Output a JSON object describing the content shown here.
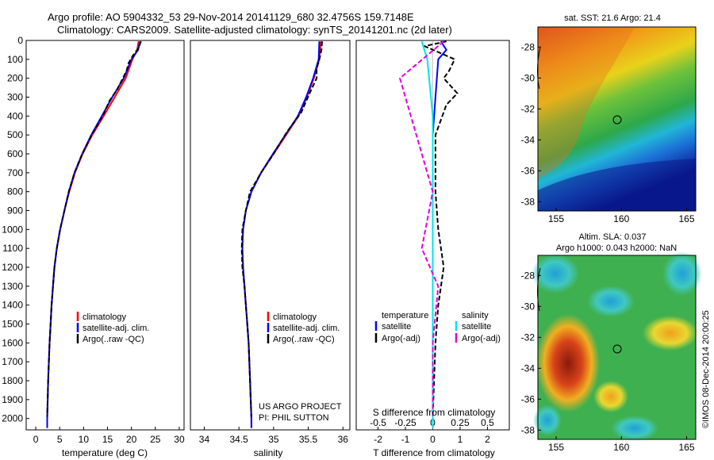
{
  "title_line1": "Argo profile: AO 5904332_53 29-Nov-2014 20141129_680 32.4756S 159.7148E",
  "title_line2": "Climatology: CARS2009. Satellite-adjusted climatology: synTS_20141201.nc (2d later)",
  "colors": {
    "climatology": "#ff0000",
    "satellite": "#0000ff",
    "argo": "#000000",
    "salinity_satellite": "#00e5e5",
    "salinity_argo": "#e000e0"
  },
  "chart_data": [
    {
      "type": "line",
      "xlabel": "temperature (deg C)",
      "ylabel": "",
      "xlim": [
        -2,
        31
      ],
      "ylim": [
        2060,
        0
      ],
      "xticks": [
        "0",
        "5",
        "10",
        "15",
        "20",
        "25",
        "30"
      ],
      "yticks": [
        "0",
        "100",
        "200",
        "300",
        "400",
        "500",
        "600",
        "700",
        "800",
        "900",
        "1000",
        "1100",
        "1200",
        "1300",
        "1400",
        "1500",
        "1600",
        "1700",
        "1800",
        "1900",
        "2000"
      ],
      "legend": [
        "climatology",
        "satellite-adj. clim.",
        "Argo(..raw -QC)"
      ],
      "series": [
        {
          "name": "climatology",
          "points": [
            [
              21.5,
              5
            ],
            [
              21.2,
              50
            ],
            [
              20.2,
              100
            ],
            [
              18.8,
              200
            ],
            [
              16.5,
              300
            ],
            [
              14.2,
              400
            ],
            [
              11.8,
              500
            ],
            [
              9.8,
              600
            ],
            [
              8.2,
              700
            ],
            [
              7.0,
              800
            ],
            [
              6.0,
              900
            ],
            [
              5.1,
              1000
            ],
            [
              4.4,
              1100
            ],
            [
              3.9,
              1200
            ],
            [
              3.6,
              1300
            ],
            [
              3.3,
              1400
            ],
            [
              3.1,
              1500
            ],
            [
              2.9,
              1600
            ],
            [
              2.75,
              1700
            ],
            [
              2.6,
              1800
            ],
            [
              2.5,
              1900
            ],
            [
              2.4,
              2000
            ],
            [
              2.4,
              2050
            ]
          ]
        },
        {
          "name": "satellite-adj. clim.",
          "points": [
            [
              21.8,
              5
            ],
            [
              21.4,
              50
            ],
            [
              20.0,
              100
            ],
            [
              18.4,
              200
            ],
            [
              16.0,
              300
            ],
            [
              13.8,
              400
            ],
            [
              11.6,
              500
            ],
            [
              9.7,
              600
            ],
            [
              8.1,
              700
            ],
            [
              6.9,
              800
            ],
            [
              6.0,
              900
            ],
            [
              5.1,
              1000
            ],
            [
              4.4,
              1100
            ],
            [
              3.9,
              1200
            ],
            [
              3.6,
              1300
            ],
            [
              3.3,
              1400
            ],
            [
              3.1,
              1500
            ],
            [
              2.9,
              1600
            ],
            [
              2.75,
              1700
            ],
            [
              2.6,
              1800
            ],
            [
              2.5,
              1900
            ],
            [
              2.4,
              2000
            ],
            [
              2.4,
              2050
            ]
          ]
        },
        {
          "name": "Argo(..raw -QC)",
          "points": [
            [
              22.0,
              5
            ],
            [
              21.5,
              40
            ],
            [
              20.3,
              80
            ],
            [
              19.4,
              120
            ],
            [
              19.0,
              160
            ],
            [
              18.2,
              200
            ],
            [
              17.0,
              260
            ],
            [
              15.4,
              320
            ],
            [
              14.0,
              400
            ],
            [
              11.7,
              500
            ],
            [
              9.7,
              600
            ],
            [
              8.1,
              700
            ],
            [
              6.9,
              800
            ],
            [
              6.0,
              900
            ],
            [
              5.1,
              1000
            ],
            [
              4.4,
              1100
            ],
            [
              3.9,
              1200
            ],
            [
              3.6,
              1300
            ],
            [
              3.3,
              1400
            ],
            [
              3.1,
              1500
            ],
            [
              2.9,
              1600
            ],
            [
              2.75,
              1700
            ],
            [
              2.6,
              1800
            ],
            [
              2.5,
              1900
            ],
            [
              2.4,
              1990
            ]
          ]
        }
      ]
    },
    {
      "type": "line",
      "xlabel": "salinity",
      "ylabel": "",
      "xlim": [
        33.8,
        36.1
      ],
      "ylim": [
        2060,
        0
      ],
      "xticks": [
        "34",
        "34.5",
        "35",
        "35.5",
        "36"
      ],
      "legend": [
        "climatology",
        "satellite-adj. clim.",
        "Argo(..raw -QC)"
      ],
      "annotation": [
        "US ARGO PROJECT",
        "PI: PHIL SUTTON"
      ],
      "series": [
        {
          "name": "climatology",
          "points": [
            [
              35.68,
              5
            ],
            [
              35.66,
              100
            ],
            [
              35.58,
              200
            ],
            [
              35.48,
              300
            ],
            [
              35.36,
              400
            ],
            [
              35.18,
              500
            ],
            [
              35.0,
              600
            ],
            [
              34.82,
              700
            ],
            [
              34.68,
              800
            ],
            [
              34.6,
              900
            ],
            [
              34.56,
              1000
            ],
            [
              34.55,
              1100
            ],
            [
              34.56,
              1200
            ],
            [
              34.58,
              1300
            ],
            [
              34.6,
              1400
            ],
            [
              34.62,
              1500
            ],
            [
              34.64,
              1600
            ],
            [
              34.65,
              1700
            ],
            [
              34.66,
              1800
            ],
            [
              34.67,
              1900
            ],
            [
              34.68,
              2000
            ],
            [
              34.68,
              2050
            ]
          ]
        },
        {
          "name": "satellite-adj. clim.",
          "points": [
            [
              35.66,
              5
            ],
            [
              35.65,
              100
            ],
            [
              35.57,
              200
            ],
            [
              35.47,
              300
            ],
            [
              35.35,
              400
            ],
            [
              35.17,
              500
            ],
            [
              34.99,
              600
            ],
            [
              34.82,
              700
            ],
            [
              34.68,
              800
            ],
            [
              34.6,
              900
            ],
            [
              34.56,
              1000
            ],
            [
              34.55,
              1100
            ],
            [
              34.56,
              1200
            ],
            [
              34.58,
              1300
            ],
            [
              34.6,
              1400
            ],
            [
              34.62,
              1500
            ],
            [
              34.64,
              1600
            ],
            [
              34.65,
              1700
            ],
            [
              34.66,
              1800
            ],
            [
              34.67,
              1900
            ],
            [
              34.68,
              2000
            ],
            [
              34.68,
              2050
            ]
          ]
        },
        {
          "name": "Argo(..raw -QC)",
          "points": [
            [
              35.7,
              5
            ],
            [
              35.69,
              50
            ],
            [
              35.66,
              100
            ],
            [
              35.62,
              150
            ],
            [
              35.62,
              200
            ],
            [
              35.52,
              280
            ],
            [
              35.4,
              380
            ],
            [
              35.2,
              480
            ],
            [
              35.0,
              600
            ],
            [
              34.82,
              700
            ],
            [
              34.66,
              800
            ],
            [
              34.6,
              900
            ],
            [
              34.55,
              1000
            ],
            [
              34.54,
              1100
            ],
            [
              34.55,
              1200
            ],
            [
              34.58,
              1300
            ],
            [
              34.6,
              1400
            ],
            [
              34.62,
              1500
            ],
            [
              34.64,
              1600
            ],
            [
              34.65,
              1700
            ],
            [
              34.66,
              1800
            ],
            [
              34.67,
              1900
            ],
            [
              34.68,
              1990
            ]
          ]
        }
      ]
    },
    {
      "type": "line",
      "xlabel": "T difference from climatology",
      "xlabel2": "S difference from climatology",
      "xlim": [
        -2.8,
        2.8
      ],
      "ylim": [
        2060,
        0
      ],
      "xticks": [
        "-2",
        "-1",
        "0",
        "1",
        "2"
      ],
      "xticks_top": [
        "-0.5",
        "-0.25",
        "0",
        "0.25",
        "0.5"
      ],
      "legend_titles": [
        "temperature",
        "salinity"
      ],
      "legend": [
        "satellite",
        "Argo(-adj)",
        "satellite",
        "Argo(-adj)"
      ],
      "series": [
        {
          "name": "satellite",
          "points": [
            [
              0.3,
              5
            ],
            [
              0.5,
              50
            ],
            [
              0.2,
              100
            ],
            [
              0.1,
              300
            ],
            [
              0.0,
              500
            ],
            [
              0.0,
              800
            ],
            [
              0.0,
              1000
            ],
            [
              0.0,
              1200
            ],
            [
              0.0,
              1600
            ],
            [
              0.0,
              2050
            ]
          ]
        },
        {
          "name": "Argo(-adj)",
          "points": [
            [
              0.5,
              5
            ],
            [
              -0.3,
              30
            ],
            [
              0.8,
              100
            ],
            [
              0.6,
              160
            ],
            [
              0.4,
              200
            ],
            [
              0.9,
              280
            ],
            [
              0.5,
              340
            ],
            [
              0.1,
              500
            ],
            [
              0.1,
              800
            ],
            [
              0.2,
              1000
            ],
            [
              0.4,
              1200
            ],
            [
              0.2,
              1400
            ],
            [
              0.1,
              1600
            ],
            [
              0.0,
              1990
            ]
          ]
        },
        {
          "name": "satellite",
          "points": [
            [
              -0.1,
              5
            ],
            [
              -0.05,
              100
            ],
            [
              0.0,
              400
            ],
            [
              0.0,
              1000
            ],
            [
              0.0,
              2050
            ]
          ]
        },
        {
          "name": "Argo(-adj)",
          "points": [
            [
              0.1,
              5
            ],
            [
              -0.3,
              200
            ],
            [
              -0.2,
              400
            ],
            [
              0.0,
              800
            ],
            [
              -0.1,
              1100
            ],
            [
              0.05,
              1300
            ],
            [
              0.0,
              1600
            ],
            [
              0.0,
              1990
            ]
          ]
        }
      ]
    }
  ],
  "maps": [
    {
      "title": "sat. SST: 21.6  Argo: 21.4",
      "xticks": [
        "155",
        "160",
        "165"
      ],
      "yticks": [
        "-28",
        "-30",
        "-32",
        "-34",
        "-36",
        "-38"
      ]
    },
    {
      "title_line1": "Altim. SLA: 0.037",
      "title_line2": "Argo h1000: 0.043 h2000: NaN",
      "xticks": [
        "155",
        "160",
        "165"
      ],
      "yticks": [
        "-28",
        "-30",
        "-32",
        "-34",
        "-36",
        "-38"
      ]
    }
  ],
  "credit": "©IMOS 08-Dec-2014 20:00:25"
}
